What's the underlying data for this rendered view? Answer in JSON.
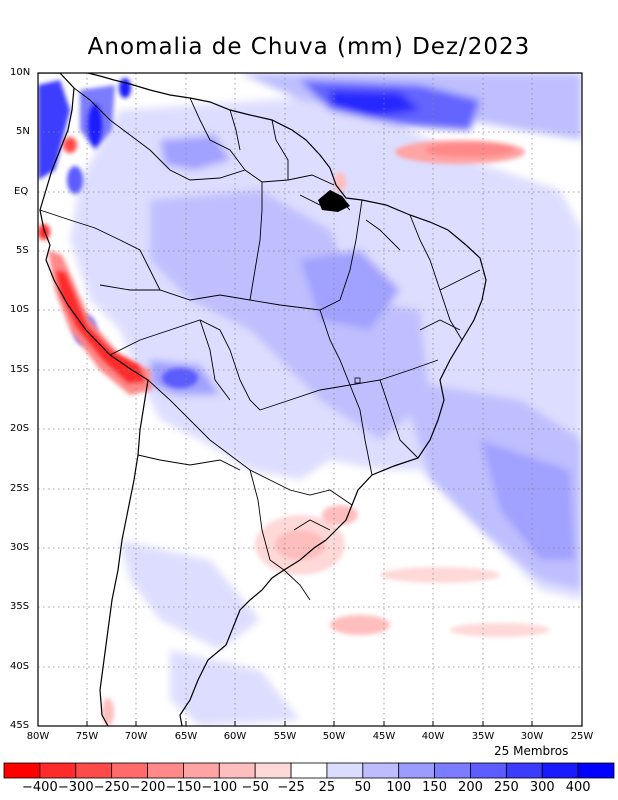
{
  "title": "Anomalia de Chuva (mm) Dez/2023",
  "members_label": "25 Membros",
  "y_ticks": [
    "10N",
    "5N",
    "EQ",
    "5S",
    "10S",
    "15S",
    "20S",
    "25S",
    "30S",
    "35S",
    "40S",
    "45S"
  ],
  "x_ticks": [
    "80W",
    "75W",
    "70W",
    "65W",
    "60W",
    "55W",
    "50W",
    "45W",
    "40W",
    "35W",
    "30W",
    "25W"
  ],
  "colorbar": {
    "labels": [
      "-400",
      "-300",
      "-250",
      "-200",
      "-150",
      "-100",
      "-50",
      "-25",
      "25",
      "50",
      "100",
      "150",
      "200",
      "250",
      "300",
      "400"
    ],
    "colors": [
      "#ff0000",
      "#ff2a2a",
      "#ff4a4a",
      "#ff6a6a",
      "#ff8888",
      "#ffa4a4",
      "#ffbebe",
      "#ffd8d8",
      "#ffffff",
      "#dcdcff",
      "#bcbcff",
      "#9c9cff",
      "#7c7cff",
      "#5c5cff",
      "#3c3cff",
      "#1a1aff",
      "#0000ff"
    ]
  },
  "colors": {
    "land_outline": "#000000",
    "grid": "#888888",
    "positive_anomaly": "#3c3cff",
    "negative_anomaly": "#ff4a4a"
  }
}
